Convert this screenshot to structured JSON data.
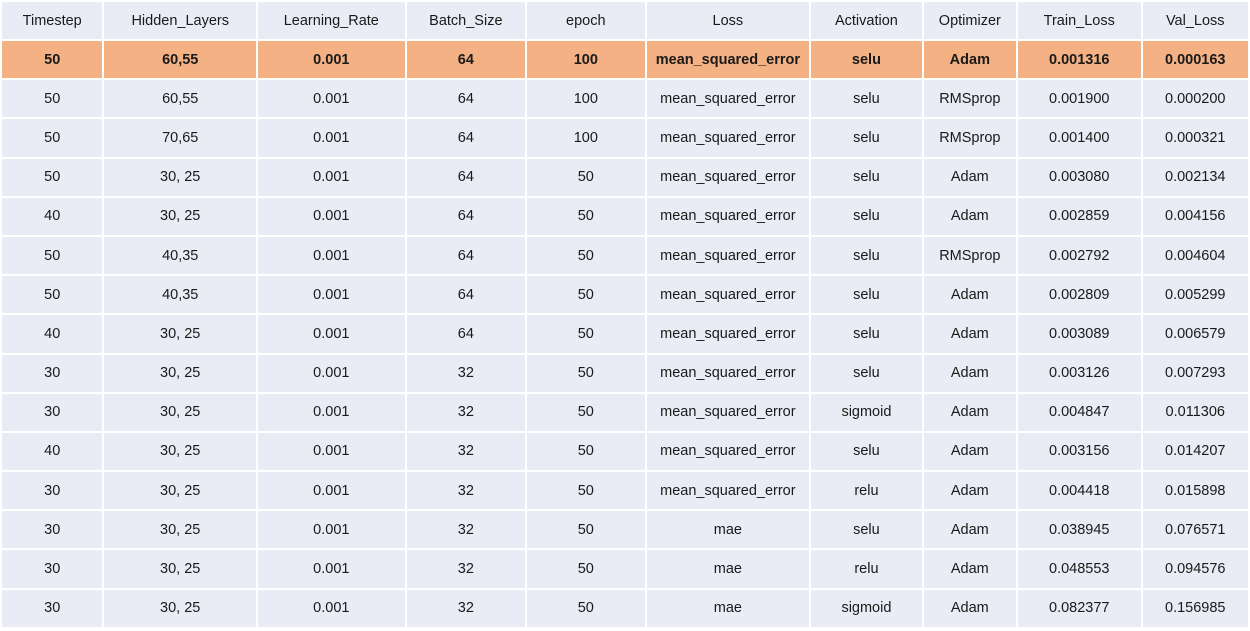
{
  "table": {
    "headers": [
      "Timestep",
      "Hidden_Layers",
      "Learning_Rate",
      "Batch_Size",
      "epoch",
      "Loss",
      "Activation",
      "Optimizer",
      "Train_Loss",
      "Val_Loss"
    ],
    "highlight_color": "#f4b183",
    "row_color": "#e9ecf5",
    "highlighted_row": 0,
    "rows": [
      [
        "50",
        "60,55",
        "0.001",
        "64",
        "100",
        "mean_squared_error",
        "selu",
        "Adam",
        "0.001316",
        "0.000163"
      ],
      [
        "50",
        "60,55",
        "0.001",
        "64",
        "100",
        "mean_squared_error",
        "selu",
        "RMSprop",
        "0.001900",
        "0.000200"
      ],
      [
        "50",
        "70,65",
        "0.001",
        "64",
        "100",
        "mean_squared_error",
        "selu",
        "RMSprop",
        "0.001400",
        "0.000321"
      ],
      [
        "50",
        "30, 25",
        "0.001",
        "64",
        "50",
        "mean_squared_error",
        "selu",
        "Adam",
        "0.003080",
        "0.002134"
      ],
      [
        "40",
        "30, 25",
        "0.001",
        "64",
        "50",
        "mean_squared_error",
        "selu",
        "Adam",
        "0.002859",
        "0.004156"
      ],
      [
        "50",
        "40,35",
        "0.001",
        "64",
        "50",
        "mean_squared_error",
        "selu",
        "RMSprop",
        "0.002792",
        "0.004604"
      ],
      [
        "50",
        "40,35",
        "0.001",
        "64",
        "50",
        "mean_squared_error",
        "selu",
        "Adam",
        "0.002809",
        "0.005299"
      ],
      [
        "40",
        "30, 25",
        "0.001",
        "64",
        "50",
        "mean_squared_error",
        "selu",
        "Adam",
        "0.003089",
        "0.006579"
      ],
      [
        "30",
        "30, 25",
        "0.001",
        "32",
        "50",
        "mean_squared_error",
        "selu",
        "Adam",
        "0.003126",
        "0.007293"
      ],
      [
        "30",
        "30, 25",
        "0.001",
        "32",
        "50",
        "mean_squared_error",
        "sigmoid",
        "Adam",
        "0.004847",
        "0.011306"
      ],
      [
        "40",
        "30, 25",
        "0.001",
        "32",
        "50",
        "mean_squared_error",
        "selu",
        "Adam",
        "0.003156",
        "0.014207"
      ],
      [
        "30",
        "30, 25",
        "0.001",
        "32",
        "50",
        "mean_squared_error",
        "relu",
        "Adam",
        "0.004418",
        "0.015898"
      ],
      [
        "30",
        "30, 25",
        "0.001",
        "32",
        "50",
        "mae",
        "selu",
        "Adam",
        "0.038945",
        "0.076571"
      ],
      [
        "30",
        "30, 25",
        "0.001",
        "32",
        "50",
        "mae",
        "relu",
        "Adam",
        "0.048553",
        "0.094576"
      ],
      [
        "30",
        "30, 25",
        "0.001",
        "32",
        "50",
        "mae",
        "sigmoid",
        "Adam",
        "0.082377",
        "0.156985"
      ]
    ]
  }
}
